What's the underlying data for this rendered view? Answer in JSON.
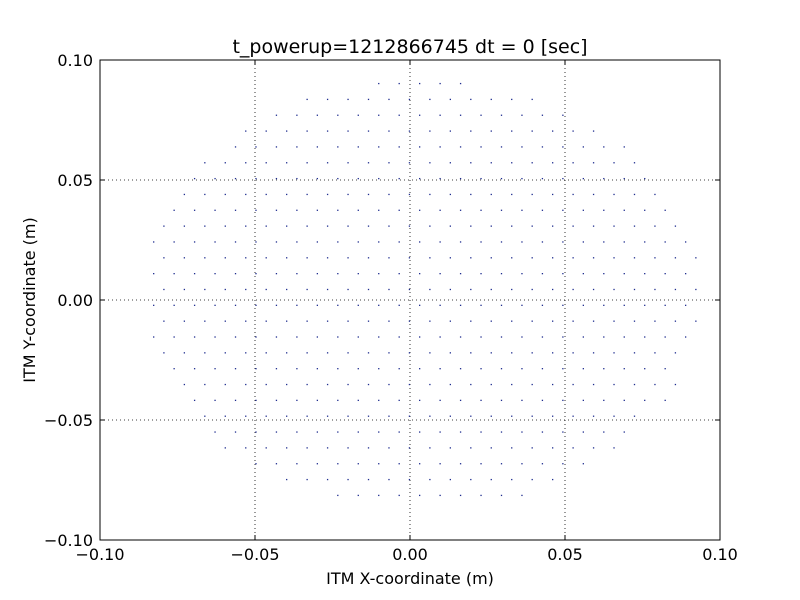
{
  "chart_data": {
    "type": "scatter",
    "title": "t_powerup=1212866745 dt = 0 [sec]",
    "xlabel": "ITM X-coordinate (m)",
    "ylabel": "ITM Y-coordinate (m)",
    "xlim": [
      -0.1,
      0.1
    ],
    "ylim": [
      -0.1,
      0.1
    ],
    "xticks": [
      -0.1,
      -0.05,
      0.0,
      0.05,
      0.1
    ],
    "yticks": [
      -0.1,
      -0.05,
      0.0,
      0.05,
      0.1
    ],
    "xtick_labels": [
      "−0.10",
      "−0.05",
      "0.00",
      "0.05",
      "0.10"
    ],
    "ytick_labels": [
      "−0.10",
      "−0.05",
      "0.00",
      "0.05",
      "0.10"
    ],
    "grid": true,
    "marker_color": "#1f2d8f",
    "series": [
      {
        "pattern": "circular grid of spots",
        "center": [
          0.004,
          0.002
        ],
        "radius": 0.09,
        "spacing_x": 0.0066,
        "spacing_y": 0.0066,
        "row_offset_x": 0.0033
      }
    ]
  }
}
